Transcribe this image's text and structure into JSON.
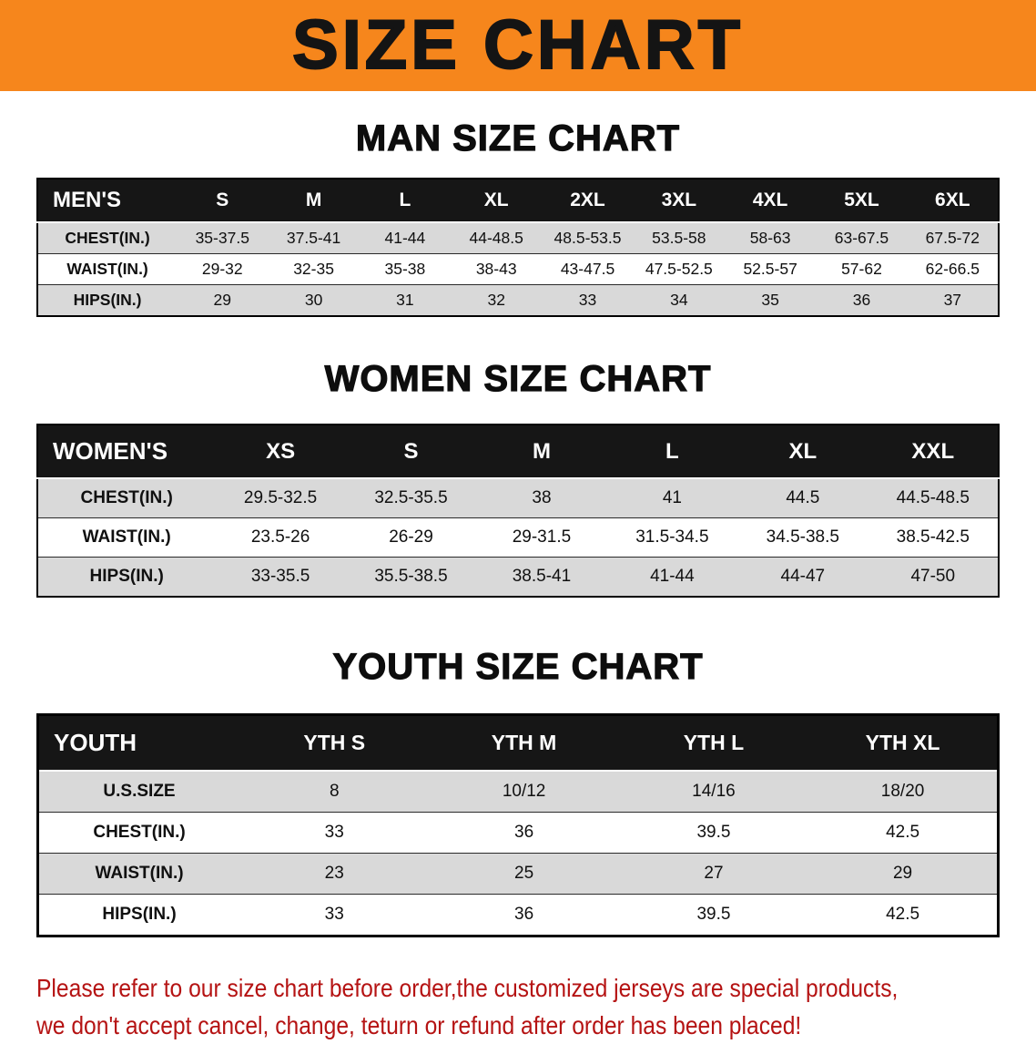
{
  "banner": {
    "title": "SIZE CHART"
  },
  "sections": {
    "men": {
      "heading": "MAN SIZE CHART",
      "table": {
        "header": [
          "MEN'S",
          "S",
          "M",
          "L",
          "XL",
          "2XL",
          "3XL",
          "4XL",
          "5XL",
          "6XL"
        ],
        "rows": [
          [
            "CHEST(IN.)",
            "35-37.5",
            "37.5-41",
            "41-44",
            "44-48.5",
            "48.5-53.5",
            "53.5-58",
            "58-63",
            "63-67.5",
            "67.5-72"
          ],
          [
            "WAIST(IN.)",
            "29-32",
            "32-35",
            "35-38",
            "38-43",
            "43-47.5",
            "47.5-52.5",
            "52.5-57",
            "57-62",
            "62-66.5"
          ],
          [
            "HIPS(IN.)",
            "29",
            "30",
            "31",
            "32",
            "33",
            "34",
            "35",
            "36",
            "37"
          ]
        ]
      }
    },
    "women": {
      "heading": "WOMEN SIZE CHART",
      "table": {
        "header": [
          "WOMEN'S",
          "XS",
          "S",
          "M",
          "L",
          "XL",
          "XXL"
        ],
        "rows": [
          [
            "CHEST(IN.)",
            "29.5-32.5",
            "32.5-35.5",
            "38",
            "41",
            "44.5",
            "44.5-48.5"
          ],
          [
            "WAIST(IN.)",
            "23.5-26",
            "26-29",
            "29-31.5",
            "31.5-34.5",
            "34.5-38.5",
            "38.5-42.5"
          ],
          [
            "HIPS(IN.)",
            "33-35.5",
            "35.5-38.5",
            "38.5-41",
            "41-44",
            "44-47",
            "47-50"
          ]
        ]
      }
    },
    "youth": {
      "heading": "YOUTH SIZE CHART",
      "table": {
        "header": [
          "YOUTH",
          "YTH S",
          "YTH M",
          "YTH L",
          "YTH XL"
        ],
        "rows": [
          [
            "U.S.SIZE",
            "8",
            "10/12",
            "14/16",
            "18/20"
          ],
          [
            "CHEST(IN.)",
            "33",
            "36",
            "39.5",
            "42.5"
          ],
          [
            "WAIST(IN.)",
            "23",
            "25",
            "27",
            "29"
          ],
          [
            "HIPS(IN.)",
            "33",
            "36",
            "39.5",
            "42.5"
          ]
        ]
      }
    }
  },
  "footer": {
    "line1": "Please refer to our size chart before order,the customized jerseys are special products,",
    "line2": "we don't accept cancel, change, teturn or refund after order has been placed!"
  },
  "colors": {
    "banner_orange": "#F6861C",
    "table_header_black": "#161616",
    "stripe_gray": "#D9D9D9",
    "notice_red": "#B51313"
  }
}
